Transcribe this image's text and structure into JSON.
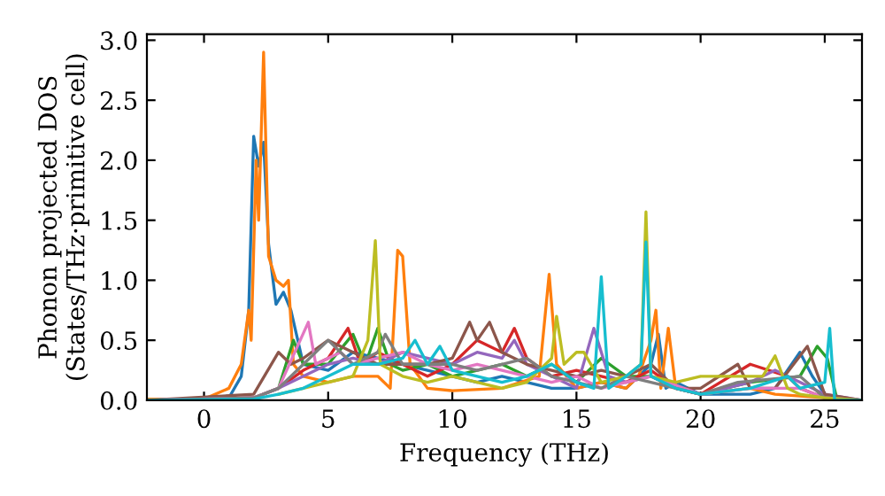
{
  "chart_data": {
    "type": "line",
    "xlabel": "Frequency (THz)",
    "ylabel": "Phonon projected DOS\n(States/THz·primitive cell)",
    "xlim": [
      -2.3,
      26.5
    ],
    "xticks": [
      0,
      5,
      10,
      15,
      20,
      25
    ],
    "ylim": [
      0.0,
      3.05
    ],
    "yticks": [
      {
        "value": 0,
        "label": "0.0"
      },
      {
        "value": 0.5,
        "label": "0.5"
      },
      {
        "value": 1,
        "label": "1.0"
      },
      {
        "value": 1.5,
        "label": "1.5"
      },
      {
        "value": 2,
        "label": "2.0"
      },
      {
        "value": 2.5,
        "label": "2.5"
      },
      {
        "value": 3,
        "label": "3.0"
      }
    ],
    "grid": false,
    "legend": false,
    "marker": "none",
    "line_style": "solid",
    "series": [
      {
        "color": "#1f77b4",
        "x": [
          -2.3,
          0,
          1,
          1.5,
          1.8,
          2.0,
          2.2,
          2.4,
          2.6,
          2.9,
          3.2,
          3.5,
          4,
          5,
          6,
          7,
          8,
          9,
          10,
          11,
          12,
          13,
          14,
          15,
          16,
          17,
          18,
          18.3,
          18.6,
          19,
          20,
          22,
          23,
          24,
          24.5,
          25,
          25.5,
          26.5
        ],
        "values": [
          0.01,
          0.01,
          0.02,
          0.2,
          0.75,
          2.2,
          1.95,
          2.15,
          1.3,
          0.8,
          0.9,
          0.75,
          0.3,
          0.25,
          0.4,
          0.35,
          0.3,
          0.25,
          0.2,
          0.15,
          0.2,
          0.15,
          0.1,
          0.1,
          0.15,
          0.1,
          0.3,
          0.55,
          0.1,
          0.15,
          0.05,
          0.05,
          0.1,
          0.4,
          0.2,
          0.05,
          0,
          0
        ]
      },
      {
        "color": "#ff7f0e",
        "x": [
          -2.3,
          0,
          1,
          1.5,
          1.8,
          1.9,
          2.1,
          2.2,
          2.4,
          2.6,
          2.9,
          3.2,
          3.4,
          3.6,
          4,
          5,
          6,
          7,
          7.5,
          7.8,
          8.0,
          8.3,
          9,
          10,
          12,
          13.5,
          13.9,
          14.2,
          15,
          16,
          17,
          17.5,
          18,
          18.2,
          18.4,
          18.7,
          19,
          20,
          22,
          23,
          25,
          26.5
        ],
        "values": [
          0.01,
          0.01,
          0.1,
          0.3,
          0.75,
          0.5,
          2.0,
          1.5,
          2.9,
          1.2,
          1.0,
          0.95,
          1.0,
          0.3,
          0.2,
          0.15,
          0.2,
          0.2,
          0.1,
          1.25,
          1.2,
          0.3,
          0.1,
          0.08,
          0.1,
          0.2,
          1.05,
          0.3,
          0.1,
          0.15,
          0.1,
          0.2,
          0.5,
          0.75,
          0.1,
          0.6,
          0.1,
          0.05,
          0.1,
          0.05,
          0.02,
          0
        ]
      },
      {
        "color": "#2ca02c",
        "x": [
          -2.3,
          2,
          3,
          3.6,
          4,
          5,
          6,
          6.5,
          7,
          7.5,
          8,
          9,
          10,
          11,
          12,
          13,
          14,
          15,
          16,
          17,
          18,
          19,
          20,
          22,
          24,
          24.7,
          25.1,
          25.5,
          26.5
        ],
        "values": [
          0,
          0.02,
          0.1,
          0.5,
          0.3,
          0.3,
          0.55,
          0.3,
          0.6,
          0.3,
          0.25,
          0.3,
          0.2,
          0.25,
          0.3,
          0.2,
          0.3,
          0.15,
          0.35,
          0.2,
          0.2,
          0.1,
          0.05,
          0.15,
          0.2,
          0.45,
          0.35,
          0,
          0
        ]
      },
      {
        "color": "#d62728",
        "x": [
          -2.3,
          2,
          3,
          4,
          5,
          5.8,
          6.3,
          7,
          8,
          9,
          10,
          11,
          12,
          12.5,
          13,
          14,
          15,
          16,
          17,
          18,
          19,
          20,
          22,
          23.5,
          24,
          25,
          26.5
        ],
        "values": [
          0,
          0.02,
          0.1,
          0.25,
          0.35,
          0.6,
          0.3,
          0.4,
          0.3,
          0.2,
          0.3,
          0.5,
          0.4,
          0.6,
          0.35,
          0.2,
          0.25,
          0.2,
          0.15,
          0.25,
          0.1,
          0.05,
          0.3,
          0.2,
          0.1,
          0.02,
          0
        ]
      },
      {
        "color": "#9467bd",
        "x": [
          -2.3,
          2,
          3,
          4,
          5,
          6,
          7,
          8,
          9,
          10,
          11,
          12,
          12.5,
          13,
          14,
          15,
          15.7,
          16.3,
          17,
          18,
          19,
          20,
          21,
          22,
          23,
          24,
          25,
          26.5
        ],
        "values": [
          0,
          0.02,
          0.1,
          0.2,
          0.3,
          0.35,
          0.3,
          0.4,
          0.35,
          0.3,
          0.4,
          0.35,
          0.5,
          0.3,
          0.2,
          0.1,
          0.6,
          0.2,
          0.15,
          0.2,
          0.1,
          0.05,
          0.1,
          0.15,
          0.25,
          0.15,
          0.05,
          0
        ]
      },
      {
        "color": "#8c564b",
        "x": [
          -2.3,
          2,
          3,
          3.5,
          4,
          5,
          6,
          7,
          8,
          9,
          10,
          10.7,
          11,
          11.5,
          12,
          13,
          14,
          15,
          16,
          17,
          18,
          19,
          20,
          21.5,
          22,
          23,
          24.3,
          25,
          26.5
        ],
        "values": [
          0,
          0.05,
          0.4,
          0.3,
          0.35,
          0.5,
          0.4,
          0.3,
          0.3,
          0.3,
          0.35,
          0.65,
          0.5,
          0.65,
          0.4,
          0.3,
          0.25,
          0.2,
          0.25,
          0.2,
          0.3,
          0.1,
          0.1,
          0.3,
          0.1,
          0.1,
          0.45,
          0.05,
          0
        ]
      },
      {
        "color": "#e377c2",
        "x": [
          -2.3,
          2,
          3,
          4.2,
          4.5,
          5.5,
          6,
          7,
          8,
          9,
          10,
          11,
          12,
          13,
          14,
          15,
          16,
          17,
          18,
          20,
          22,
          24,
          25,
          26.5
        ],
        "values": [
          0,
          0.02,
          0.1,
          0.65,
          0.3,
          0.4,
          0.3,
          0.35,
          0.4,
          0.3,
          0.25,
          0.3,
          0.25,
          0.2,
          0.15,
          0.2,
          0.1,
          0.15,
          0.2,
          0.05,
          0.1,
          0.1,
          0.02,
          0
        ]
      },
      {
        "color": "#7f7f7f",
        "x": [
          -2.3,
          2,
          3,
          4,
          5,
          6,
          7,
          7.3,
          8,
          9,
          10,
          11,
          12,
          13,
          14,
          15,
          16,
          17,
          18,
          19,
          20,
          21.5,
          24,
          25,
          26.5
        ],
        "values": [
          0,
          0.02,
          0.1,
          0.3,
          0.5,
          0.3,
          0.4,
          0.55,
          0.3,
          0.3,
          0.3,
          0.25,
          0.3,
          0.35,
          0.2,
          0.15,
          0.1,
          0.2,
          0.15,
          0.1,
          0.05,
          0.15,
          0.2,
          0.02,
          0
        ]
      },
      {
        "color": "#bcbd22",
        "x": [
          3,
          4,
          5,
          6,
          6.6,
          6.9,
          7.1,
          8,
          9,
          10,
          11,
          12,
          13,
          14,
          14.2,
          14.5,
          15,
          15.3,
          16,
          17,
          17.6,
          17.8,
          18,
          19,
          20,
          21.5,
          22.5,
          23,
          23.5,
          24,
          25,
          26.5
        ],
        "values": [
          0.05,
          0.1,
          0.15,
          0.2,
          0.5,
          1.33,
          0.3,
          0.2,
          0.15,
          0.2,
          0.15,
          0.1,
          0.15,
          0.35,
          0.7,
          0.3,
          0.4,
          0.4,
          0.15,
          0.2,
          0.3,
          1.57,
          0.2,
          0.15,
          0.2,
          0.2,
          0.2,
          0.37,
          0.1,
          0.05,
          0.02,
          0
        ]
      },
      {
        "color": "#17becf",
        "x": [
          -2.3,
          2,
          3,
          4,
          5,
          6,
          7,
          8,
          8.5,
          9,
          9.5,
          10,
          11,
          12,
          13,
          14,
          15,
          15.7,
          16,
          16.3,
          17,
          17.6,
          17.8,
          18,
          19,
          20,
          22,
          23.5,
          24,
          25,
          25.2,
          25.4,
          26.5
        ],
        "values": [
          0,
          0.01,
          0.05,
          0.1,
          0.2,
          0.3,
          0.3,
          0.35,
          0.5,
          0.3,
          0.45,
          0.25,
          0.2,
          0.15,
          0.2,
          0.3,
          0.15,
          0.1,
          1.03,
          0.1,
          0.2,
          0.3,
          1.32,
          0.2,
          0.1,
          0.05,
          0.1,
          0.2,
          0.1,
          0.15,
          0.6,
          0,
          0
        ]
      }
    ]
  }
}
